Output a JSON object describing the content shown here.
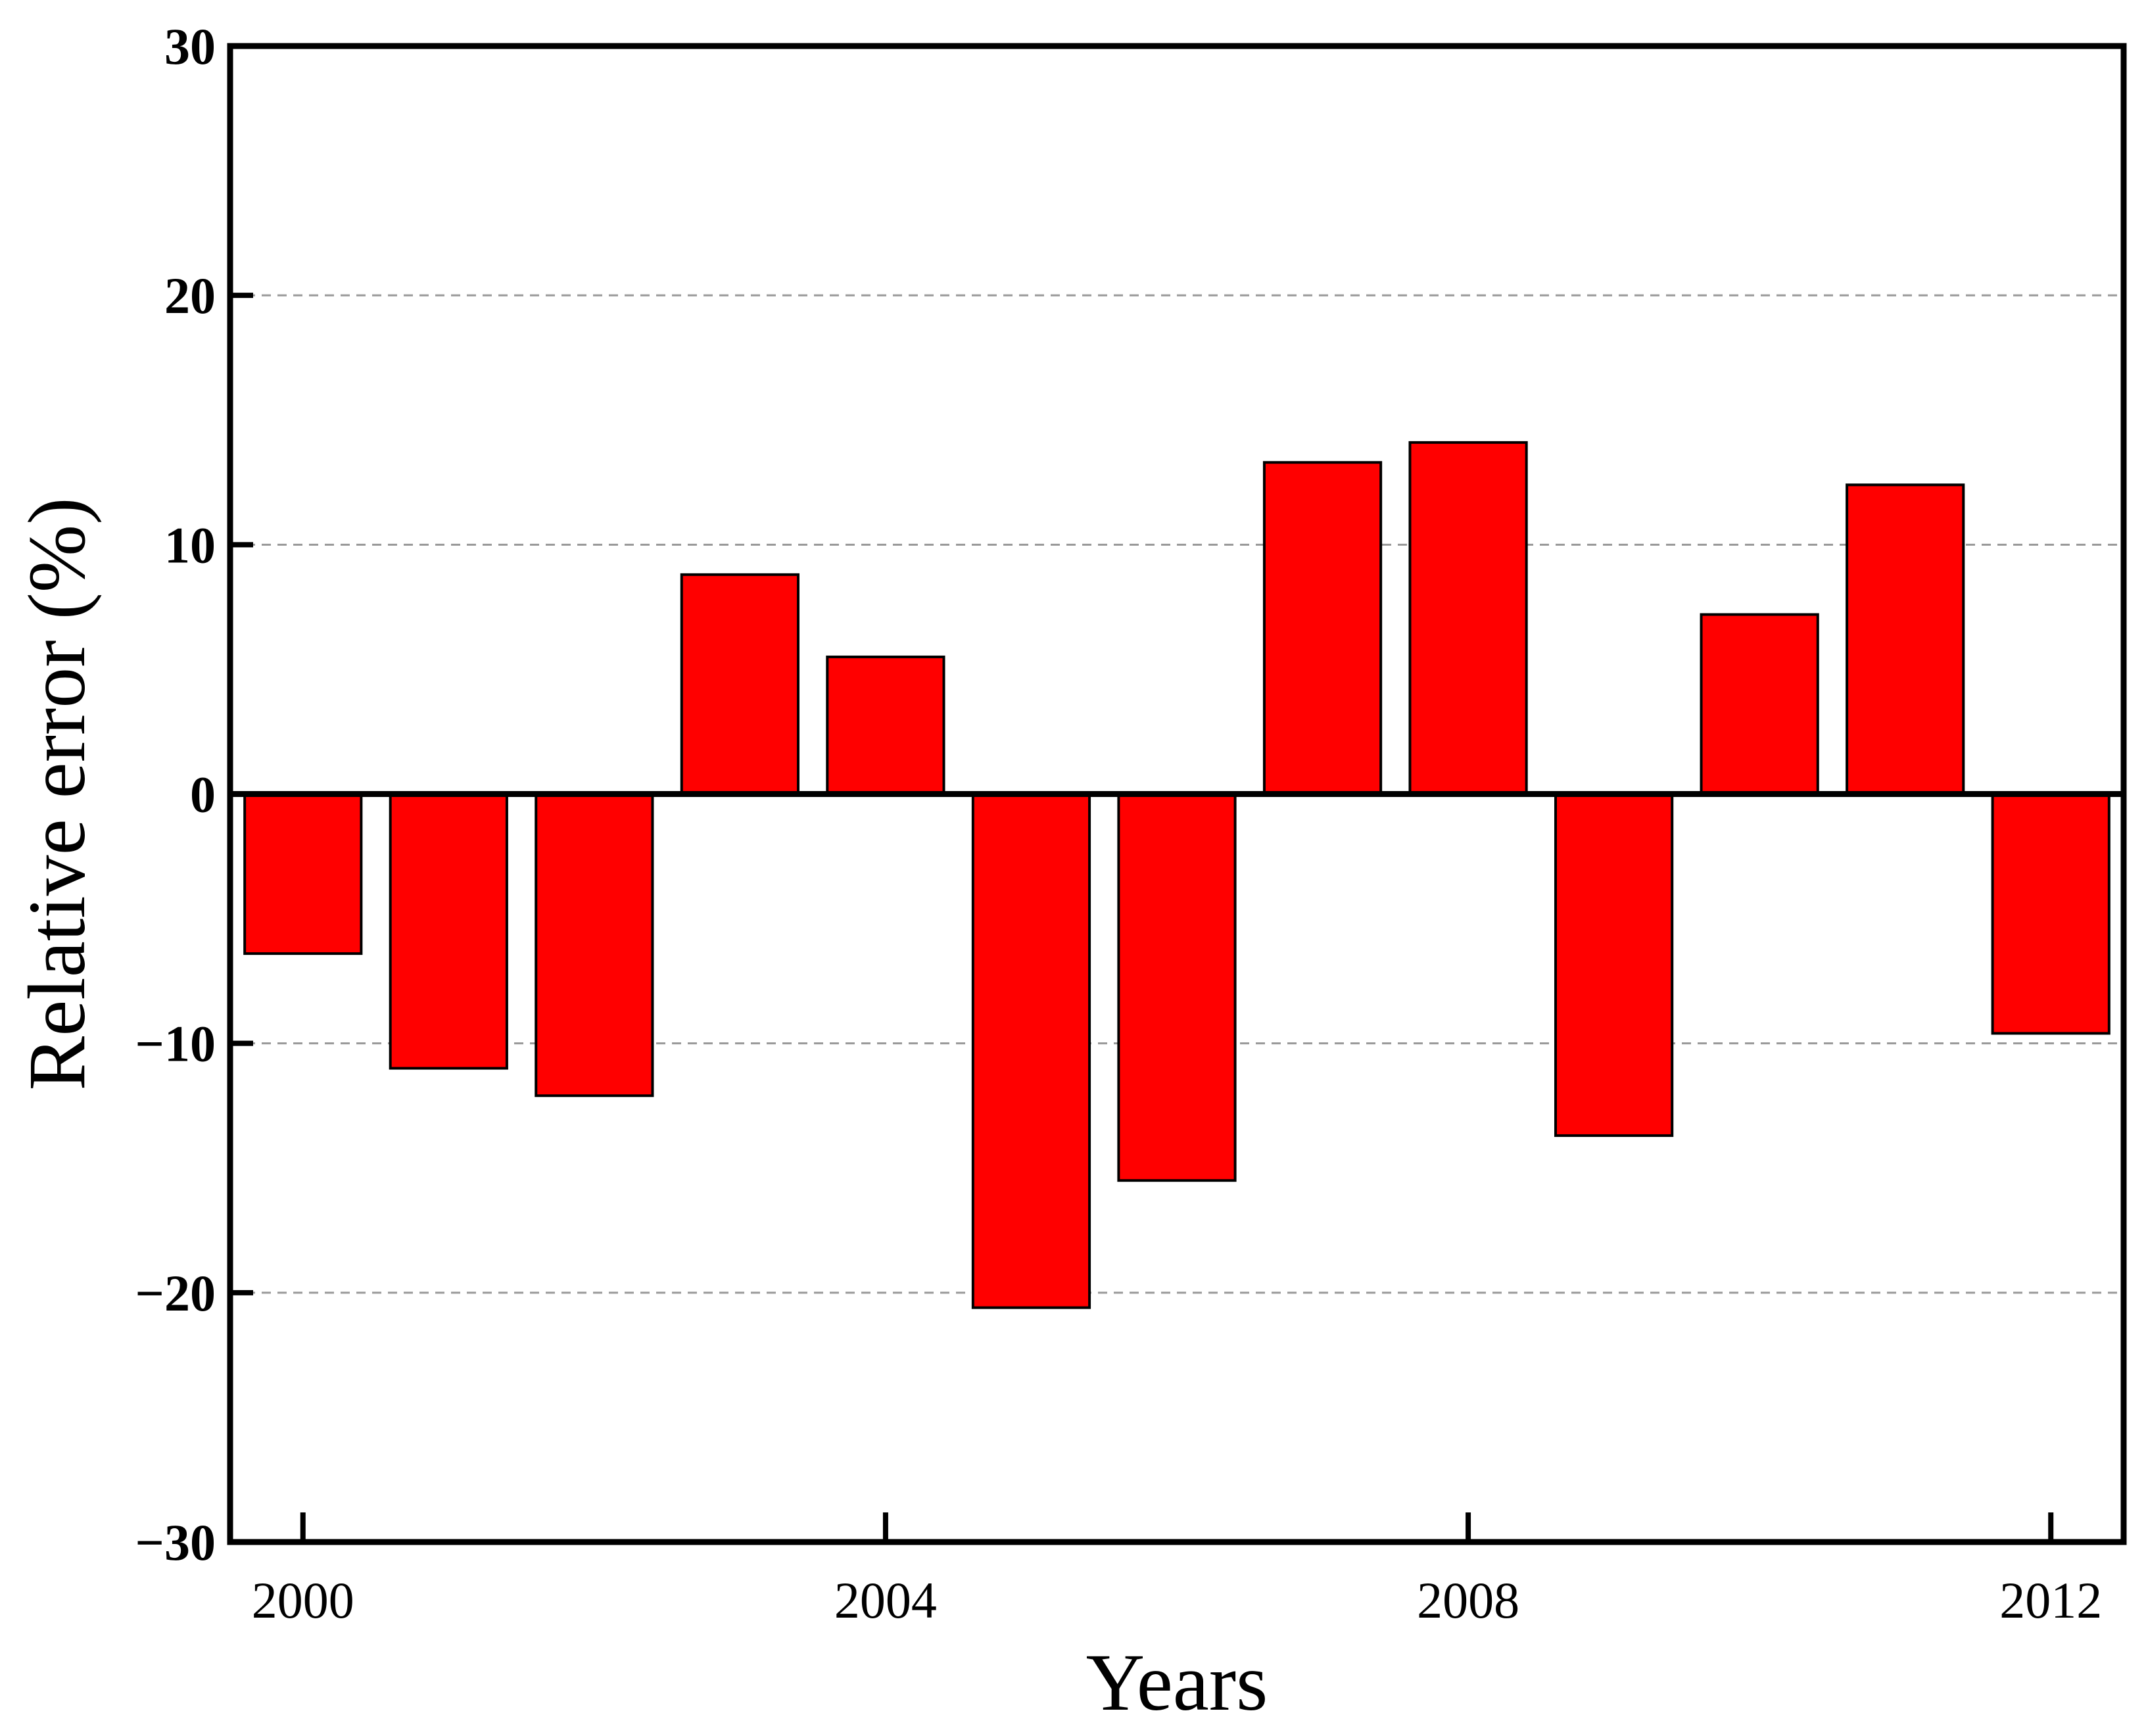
{
  "chart_data": {
    "type": "bar",
    "xlabel": "Years",
    "ylabel": "Relative error (%)",
    "categories": [
      "2000",
      "2001",
      "2002",
      "2003",
      "2004",
      "2005",
      "2006",
      "2007",
      "2008",
      "2009",
      "2010",
      "2011",
      "2012"
    ],
    "values": [
      -6.4,
      -11.0,
      -12.1,
      8.8,
      5.5,
      -20.6,
      -15.5,
      13.3,
      14.1,
      -13.7,
      7.2,
      12.4,
      -9.6
    ],
    "xlim": [
      1999.5,
      2012.5
    ],
    "ylim": [
      -30,
      30
    ],
    "xticks": [
      2000,
      2004,
      2008,
      2012
    ],
    "yticks": [
      -30,
      -20,
      -10,
      0,
      10,
      20,
      30
    ],
    "ytick_labels": [
      "−30",
      "−20",
      "−10",
      "0",
      "10",
      "20",
      "30"
    ],
    "grid": "horizontal dashed",
    "bar_color": "#ff0000",
    "edge_color": "#000000"
  }
}
